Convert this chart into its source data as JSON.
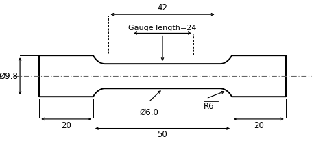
{
  "bg_color": "#ffffff",
  "line_color": "#000000",
  "annotations": {
    "dim_42_label": "42",
    "dim_gauge_label": "Gauge length=24",
    "dim_20_left_label": "20",
    "dim_20_right_label": "20",
    "dim_50_label": "50",
    "dim_d98_label": "Ø9.8",
    "dim_d60_label": "Ø6.0",
    "dim_r6_label": "R6"
  },
  "fontsize": 8.5,
  "xlim": [
    -62,
    62
  ],
  "ylim": [
    -17,
    20
  ],
  "grip_hw": 5.5,
  "gauge_hr": 3.3,
  "grip_outer": 48.0,
  "grip_inner_x": 27.0,
  "fillet_R": 6.0
}
